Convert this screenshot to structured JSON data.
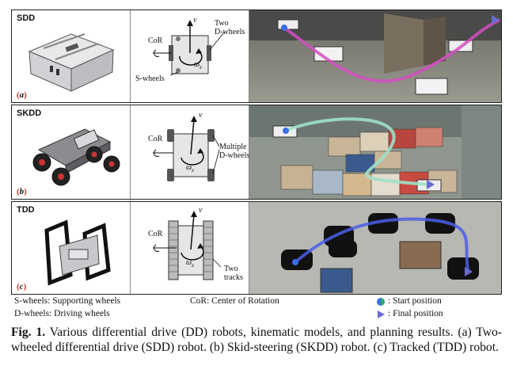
{
  "rows": [
    {
      "tag": "SDD",
      "sub_letter": "a",
      "model": {
        "cor": "CoR",
        "v": "v",
        "omega": "ω",
        "omega_sub": "z",
        "wheels_note": "Two\nD-wheels",
        "extra_note": "S-wheels"
      }
    },
    {
      "tag": "SKDD",
      "sub_letter": "b",
      "model": {
        "cor": "CoR",
        "v": "v",
        "omega": "ω",
        "omega_sub": "z",
        "wheels_note": "Multiple\nD-wheels",
        "extra_note": ""
      }
    },
    {
      "tag": "TDD",
      "sub_letter": "c",
      "model": {
        "cor": "CoR",
        "v": "v",
        "omega": "ω",
        "omega_sub": "z",
        "wheels_note": "Two\ntracks",
        "extra_note": ""
      }
    }
  ],
  "legend": {
    "swheels": "S-wheels: Supporting wheels",
    "dwheels": "D-wheels: Driving wheels",
    "cor": "CoR: Center of Rotation",
    "start": ": Start position",
    "final": ": Final position"
  },
  "caption": {
    "label": "Fig. 1.",
    "text": " Various differential drive (DD) robots, kinematic models, and planning results. (a) Two-wheeled differential drive (SDD) robot. (b) Skid-steering (SKDD) robot. (c) Tracked (TDD) robot."
  },
  "colors": {
    "path_sdd": "#d44fc2",
    "path_skdd": "#9ee0c8",
    "path_tdd": "#4a5ee8"
  }
}
